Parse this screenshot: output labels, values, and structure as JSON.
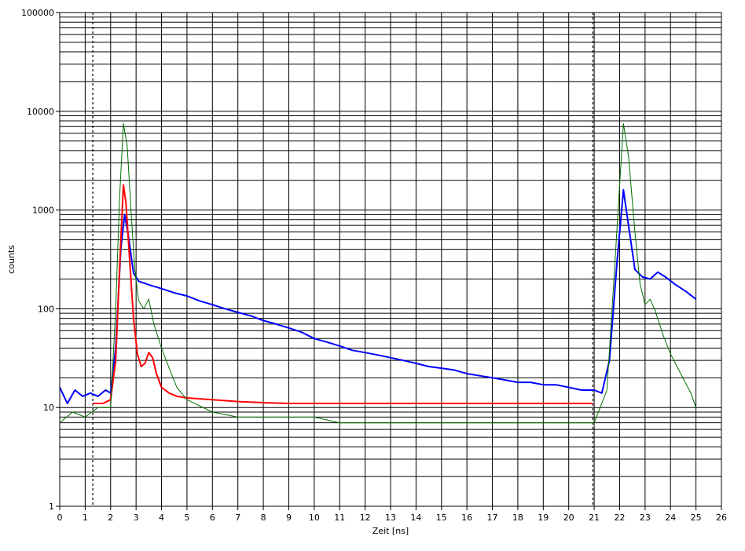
{
  "chart_data": {
    "type": "line",
    "title": "",
    "xlabel": "Zeit [ns]",
    "ylabel": "counts",
    "xlim": [
      0,
      26
    ],
    "ylim": [
      1,
      100000
    ],
    "yscale": "log",
    "grid": true,
    "legend": "none",
    "x_ticks": [
      "0",
      "1",
      "2",
      "3",
      "4",
      "5",
      "6",
      "7",
      "8",
      "9",
      "10",
      "11",
      "12",
      "13",
      "14",
      "15",
      "16",
      "17",
      "18",
      "19",
      "20",
      "21",
      "22",
      "23",
      "24",
      "25",
      "26"
    ],
    "y_ticks": [
      {
        "value": 1,
        "label": "1"
      },
      {
        "value": 10,
        "label": "10"
      },
      {
        "value": 100,
        "label": "100"
      },
      {
        "value": 1000,
        "label": "1000"
      },
      {
        "value": 10000,
        "label": "10000"
      },
      {
        "value": 100000,
        "label": "100000"
      }
    ],
    "markers": [
      1.3,
      20.95
    ],
    "series": [
      {
        "name": "",
        "color": "#0000ff",
        "values": [
          [
            0,
            16
          ],
          [
            0.3,
            11
          ],
          [
            0.6,
            15
          ],
          [
            0.9,
            13
          ],
          [
            1.2,
            14
          ],
          [
            1.5,
            13
          ],
          [
            1.8,
            15
          ],
          [
            2.0,
            14
          ],
          [
            2.2,
            40
          ],
          [
            2.4,
            400
          ],
          [
            2.55,
            900
          ],
          [
            2.7,
            550
          ],
          [
            2.9,
            230
          ],
          [
            3.1,
            190
          ],
          [
            3.5,
            175
          ],
          [
            4.0,
            160
          ],
          [
            4.5,
            145
          ],
          [
            5.0,
            135
          ],
          [
            5.5,
            120
          ],
          [
            6.0,
            110
          ],
          [
            6.5,
            100
          ],
          [
            7.0,
            92
          ],
          [
            7.5,
            85
          ],
          [
            8.0,
            76
          ],
          [
            8.5,
            70
          ],
          [
            9.0,
            64
          ],
          [
            9.5,
            58
          ],
          [
            10.0,
            50
          ],
          [
            10.5,
            46
          ],
          [
            11.0,
            42
          ],
          [
            11.5,
            38
          ],
          [
            12.0,
            36
          ],
          [
            12.5,
            34
          ],
          [
            13.0,
            32
          ],
          [
            13.5,
            30
          ],
          [
            14.0,
            28
          ],
          [
            14.5,
            26
          ],
          [
            15.0,
            25
          ],
          [
            15.5,
            24
          ],
          [
            16.0,
            22
          ],
          [
            16.5,
            21
          ],
          [
            17.0,
            20
          ],
          [
            17.5,
            19
          ],
          [
            18.0,
            18
          ],
          [
            18.5,
            18
          ],
          [
            19.0,
            17
          ],
          [
            19.5,
            17
          ],
          [
            20.0,
            16
          ],
          [
            20.5,
            15
          ],
          [
            21.0,
            15
          ],
          [
            21.3,
            14
          ],
          [
            21.6,
            30
          ],
          [
            21.9,
            300
          ],
          [
            22.15,
            1600
          ],
          [
            22.35,
            700
          ],
          [
            22.6,
            250
          ],
          [
            22.9,
            210
          ],
          [
            23.2,
            200
          ],
          [
            23.5,
            235
          ],
          [
            23.8,
            210
          ],
          [
            24.2,
            175
          ],
          [
            24.6,
            150
          ],
          [
            25.0,
            125
          ]
        ]
      },
      {
        "name": "",
        "color": "#ff0000",
        "values": [
          [
            1.3,
            11
          ],
          [
            1.7,
            11
          ],
          [
            2.0,
            12
          ],
          [
            2.2,
            30
          ],
          [
            2.35,
            250
          ],
          [
            2.5,
            1800
          ],
          [
            2.6,
            1200
          ],
          [
            2.75,
            300
          ],
          [
            2.9,
            80
          ],
          [
            3.05,
            35
          ],
          [
            3.2,
            26
          ],
          [
            3.35,
            28
          ],
          [
            3.5,
            36
          ],
          [
            3.65,
            32
          ],
          [
            3.8,
            22
          ],
          [
            4.0,
            16
          ],
          [
            4.3,
            14
          ],
          [
            4.6,
            13
          ],
          [
            5.0,
            12.5
          ],
          [
            6.0,
            12
          ],
          [
            7.0,
            11.5
          ],
          [
            8.0,
            11.2
          ],
          [
            9.0,
            11
          ],
          [
            10.0,
            11
          ],
          [
            11.0,
            11
          ],
          [
            13.0,
            11
          ],
          [
            15.0,
            11
          ],
          [
            17.0,
            11
          ],
          [
            19.0,
            11
          ],
          [
            20.95,
            11
          ]
        ]
      },
      {
        "name": "",
        "color": "#007000",
        "values": [
          [
            0,
            7
          ],
          [
            0.5,
            9
          ],
          [
            1.0,
            8
          ],
          [
            1.5,
            10
          ],
          [
            2.0,
            10
          ],
          [
            2.2,
            100
          ],
          [
            2.35,
            1300
          ],
          [
            2.5,
            7500
          ],
          [
            2.65,
            4500
          ],
          [
            2.8,
            1000
          ],
          [
            2.95,
            250
          ],
          [
            3.1,
            120
          ],
          [
            3.3,
            100
          ],
          [
            3.5,
            125
          ],
          [
            3.7,
            70
          ],
          [
            4.0,
            40
          ],
          [
            4.3,
            25
          ],
          [
            4.6,
            16
          ],
          [
            5.0,
            12
          ],
          [
            6.0,
            9
          ],
          [
            7.0,
            8
          ],
          [
            8.0,
            8
          ],
          [
            9.0,
            8
          ],
          [
            10.0,
            8
          ],
          [
            11.0,
            7
          ],
          [
            12.0,
            7
          ],
          [
            13.0,
            7
          ],
          [
            14.0,
            7
          ],
          [
            15.0,
            7
          ],
          [
            16.0,
            7
          ],
          [
            17.0,
            7
          ],
          [
            18.0,
            7
          ],
          [
            19.0,
            7
          ],
          [
            20.0,
            7
          ],
          [
            21.0,
            7
          ],
          [
            21.5,
            15
          ],
          [
            21.8,
            250
          ],
          [
            22.0,
            1800
          ],
          [
            22.15,
            7500
          ],
          [
            22.35,
            3500
          ],
          [
            22.6,
            600
          ],
          [
            22.8,
            180
          ],
          [
            23.0,
            110
          ],
          [
            23.2,
            125
          ],
          [
            23.4,
            95
          ],
          [
            23.7,
            55
          ],
          [
            24.0,
            35
          ],
          [
            24.4,
            22
          ],
          [
            24.8,
            14
          ],
          [
            25.0,
            10
          ]
        ]
      }
    ]
  }
}
